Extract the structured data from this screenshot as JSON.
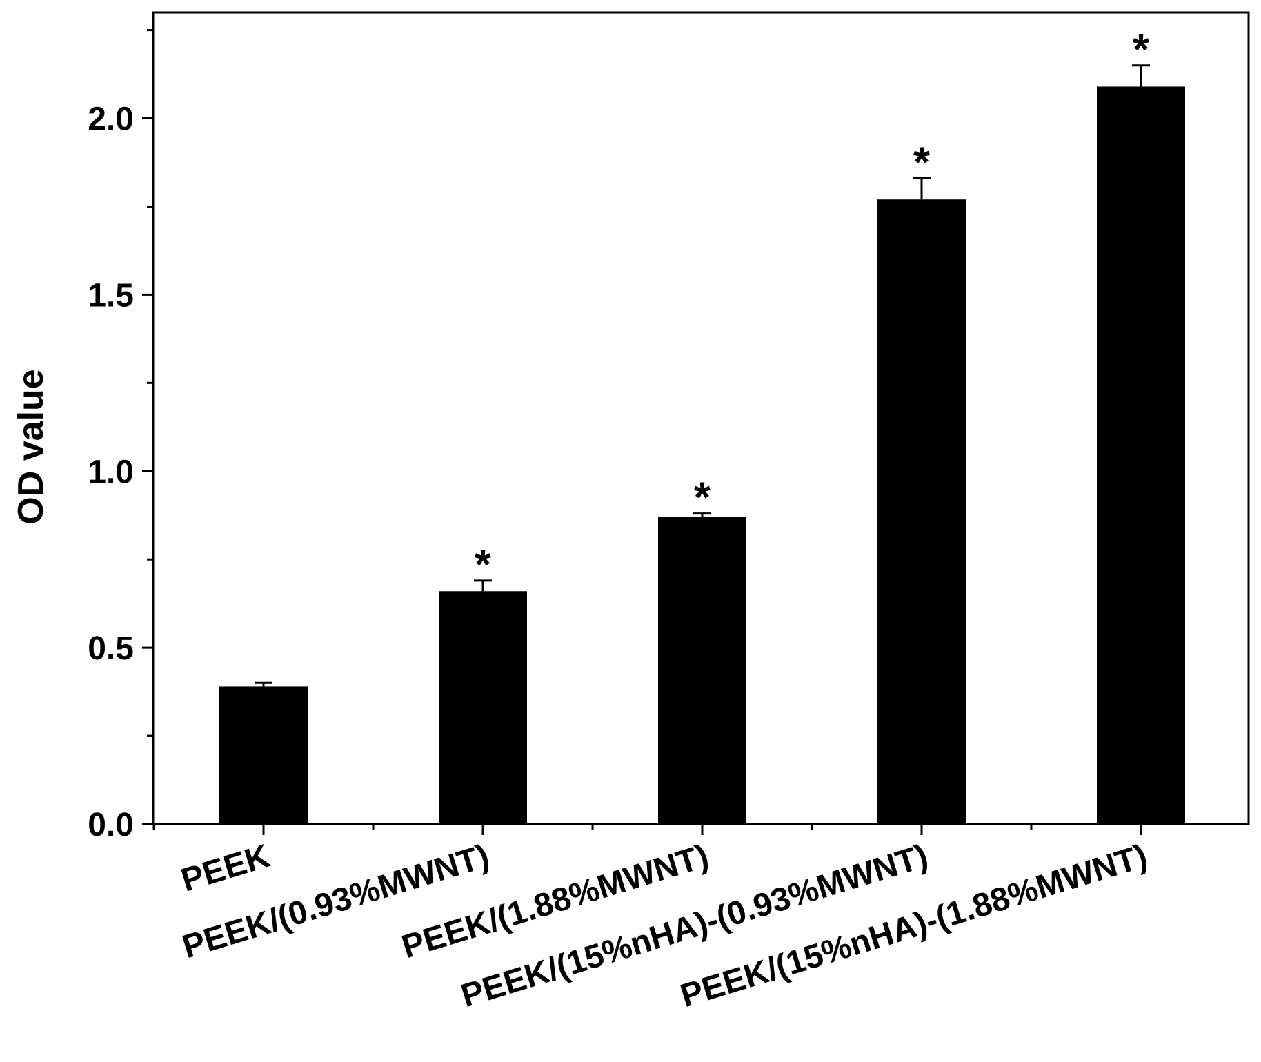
{
  "chart_data": {
    "type": "bar",
    "title": "",
    "xlabel": "",
    "ylabel": "OD value",
    "ylim": [
      0,
      2.3
    ],
    "yticks": [
      "0.0",
      "0.5",
      "1.0",
      "1.5",
      "2.0"
    ],
    "ytick_values": [
      0,
      0.5,
      1.0,
      1.5,
      2.0
    ],
    "grid": false,
    "legend": "none",
    "bar_color": "#000000",
    "categories": [
      "PEEK",
      "PEEK/(0.93%MWNT)",
      "PEEK/(1.88%MWNT)",
      "PEEK/(15%nHA)-(0.93%MWNT)",
      "PEEK/(15%nHA)-(1.88%MWNT)"
    ],
    "values": [
      0.39,
      0.66,
      0.87,
      1.77,
      2.09
    ],
    "errors": [
      0.01,
      0.03,
      0.01,
      0.06,
      0.06
    ],
    "significance": [
      "",
      "*",
      "*",
      "*",
      "*"
    ]
  }
}
